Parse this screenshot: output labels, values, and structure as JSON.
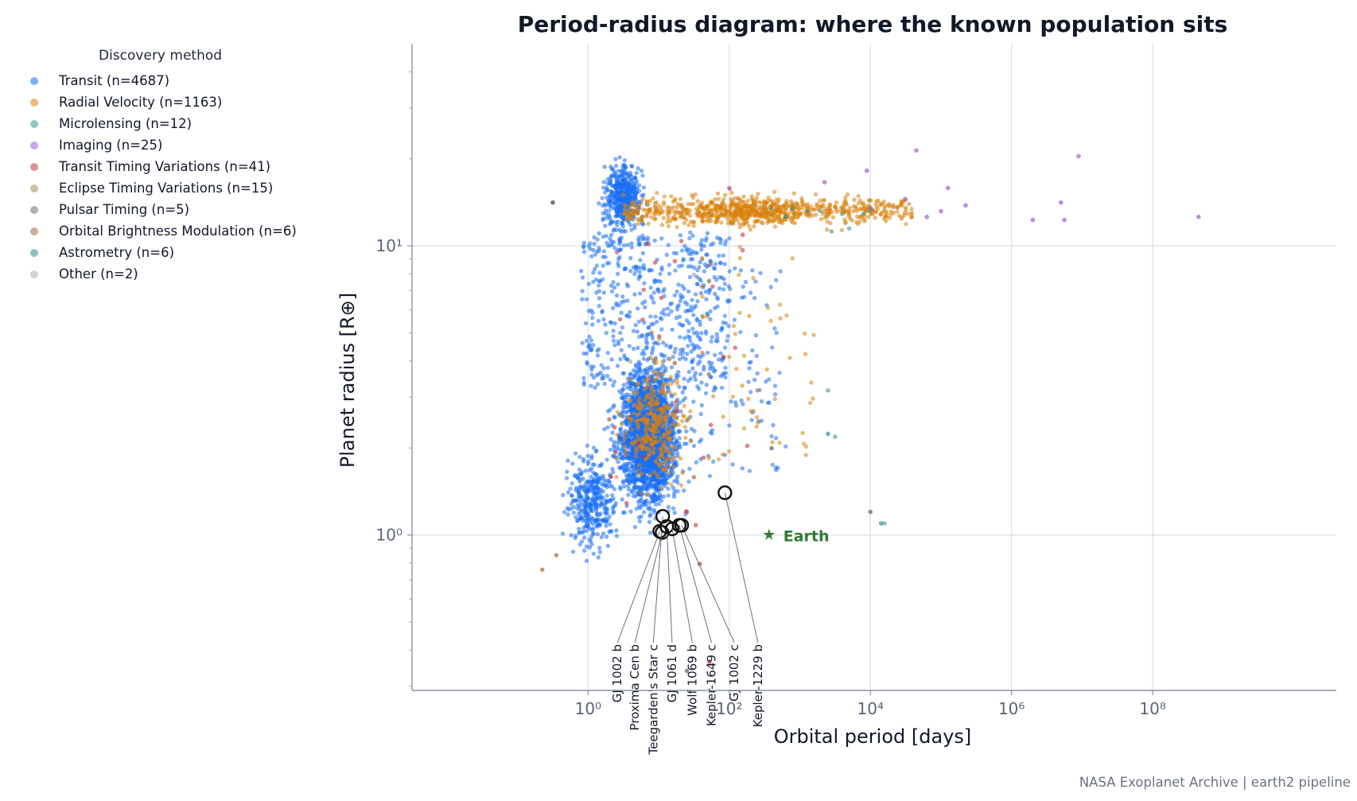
{
  "chart_data": {
    "type": "scatter",
    "title": "Period-radius diagram: where the known population sits",
    "xlabel": "Orbital period  [days]",
    "ylabel": "Planet radius  [R⊕]",
    "xscale": "log",
    "yscale": "log",
    "xlim": [
      0.0032,
      40000000000
    ],
    "ylim": [
      0.29,
      50
    ],
    "xticks": [
      {
        "value": 1,
        "label": "10⁰"
      },
      {
        "value": 100,
        "label": "10²"
      },
      {
        "value": 10000,
        "label": "10⁴"
      },
      {
        "value": 1000000,
        "label": "10⁶"
      },
      {
        "value": 100000000,
        "label": "10⁸"
      }
    ],
    "yticks": [
      {
        "value": 1,
        "label": "10⁰"
      },
      {
        "value": 10,
        "label": "10¹"
      }
    ],
    "grid": true,
    "legend_title": "Discovery method",
    "legend_position": "upper-left, outside plot",
    "series": [
      {
        "name": "Transit (n=4687)",
        "color": "#1a6ff5",
        "n": 4687
      },
      {
        "name": "Radial Velocity (n=1163)",
        "color": "#d9820f",
        "n": 1163
      },
      {
        "name": "Microlensing (n=12)",
        "color": "#3a9a8c",
        "n": 12
      },
      {
        "name": "Imaging (n=25)",
        "color": "#9b5fd6",
        "n": 25
      },
      {
        "name": "Transit Timing Variations (n=41)",
        "color": "#c0393f",
        "n": 41
      },
      {
        "name": "Eclipse Timing Variations (n=15)",
        "color": "#a88a5a",
        "n": 15
      },
      {
        "name": "Pulsar Timing (n=5)",
        "color": "#707070",
        "n": 5
      },
      {
        "name": "Orbital Brightness Modulation (n=6)",
        "color": "#b06a3c",
        "n": 6
      },
      {
        "name": "Astrometry (n=6)",
        "color": "#2f8f96",
        "n": 6
      },
      {
        "name": "Other (n=2)",
        "color": "#a9adb4",
        "n": 2
      }
    ],
    "earth": {
      "label": "Earth",
      "period": 365.25,
      "radius": 1.0,
      "color": "#2e7d32"
    },
    "highlighted": [
      {
        "name": "GJ 1002 b",
        "period": 10.35,
        "radius": 1.03,
        "label_period": 2.6
      },
      {
        "name": "Proxima Cen b",
        "period": 11.19,
        "radius": 1.02,
        "label_period": 4.6
      },
      {
        "name": "Teegarden's Star c",
        "period": 11.41,
        "radius": 1.16,
        "label_period": 8.4
      },
      {
        "name": "GJ 1061 d",
        "period": 13.03,
        "radius": 1.07,
        "label_period": 15.5
      },
      {
        "name": "Wolf 1069 b",
        "period": 15.56,
        "radius": 1.05,
        "label_period": 30.0
      },
      {
        "name": "Kepler-1649 c",
        "period": 19.54,
        "radius": 1.08,
        "label_period": 56.0
      },
      {
        "name": "GJ 1002 c",
        "period": 21.2,
        "radius": 1.08,
        "label_period": 118.0
      },
      {
        "name": "Kepler-1229 b",
        "period": 86.83,
        "radius": 1.4,
        "label_period": 255.0
      }
    ]
  },
  "footer": "NASA Exoplanet Archive | earth2 pipeline"
}
